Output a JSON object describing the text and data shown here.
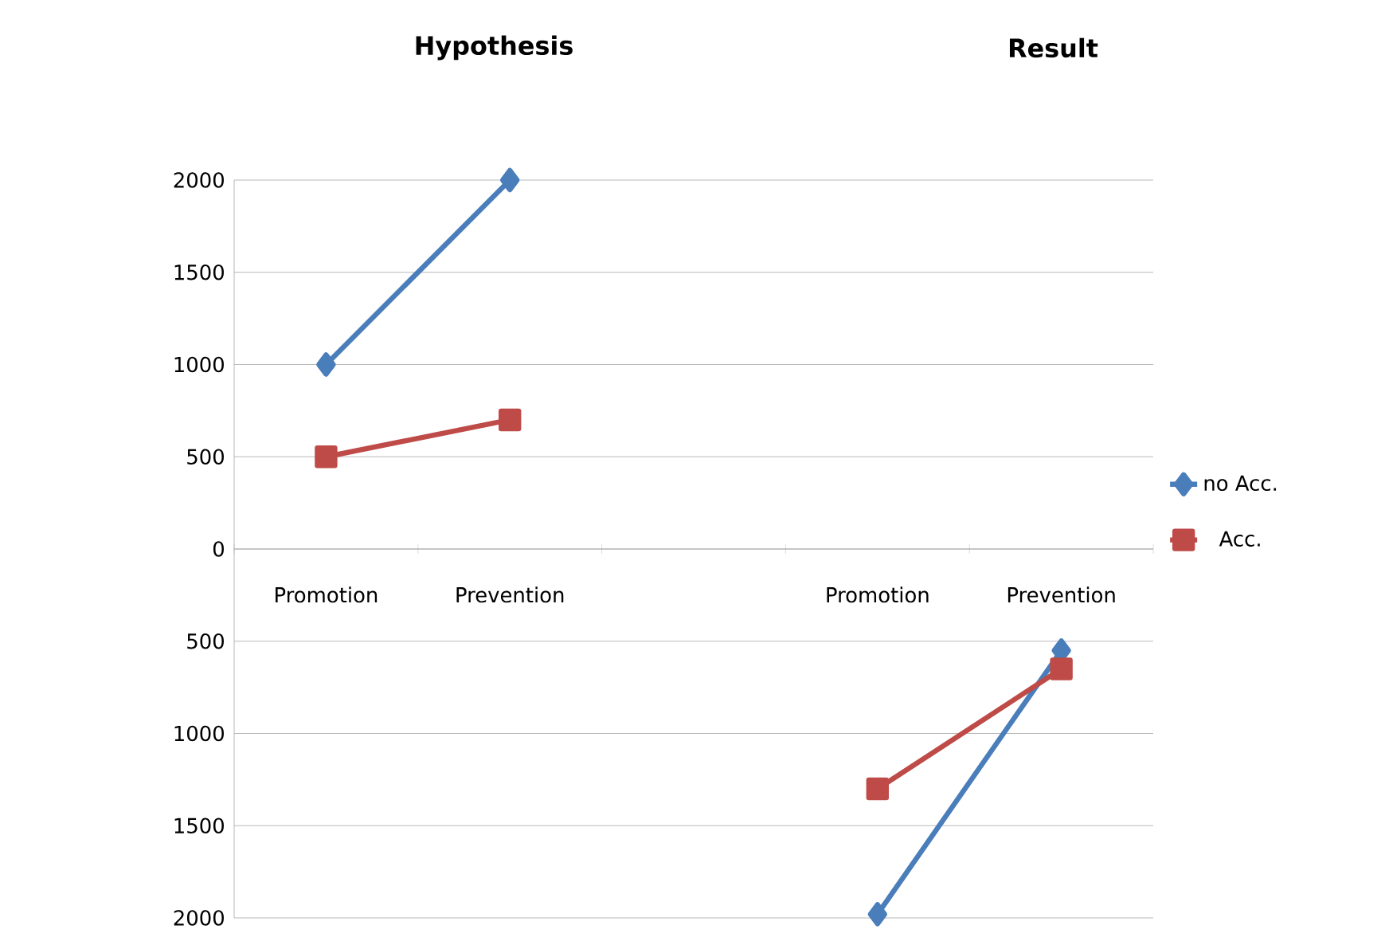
{
  "chart_data": {
    "type": "line",
    "categories": [
      "Promotion",
      "Prevention",
      null,
      "Promotion",
      "Prevention"
    ],
    "series": [
      {
        "name": "no Acc.",
        "color": "#4a7ebb",
        "marker": "diamond",
        "values": [
          1000,
          2000,
          null,
          -1980,
          -550
        ]
      },
      {
        "name": "Acc.",
        "color": "#be4b48",
        "marker": "square",
        "values": [
          500,
          700,
          null,
          -1300,
          -650
        ]
      }
    ],
    "ylim": [
      -2000,
      2000
    ],
    "yticks": [
      {
        "value": -2000,
        "label": "2000"
      },
      {
        "value": -1500,
        "label": "1500"
      },
      {
        "value": -1000,
        "label": "1000"
      },
      {
        "value": -500,
        "label": "500"
      },
      0,
      500,
      1000,
      1500,
      2000
    ],
    "grid": "y",
    "legend": "right",
    "annotations": [
      "Hypothesis",
      "Result"
    ]
  }
}
